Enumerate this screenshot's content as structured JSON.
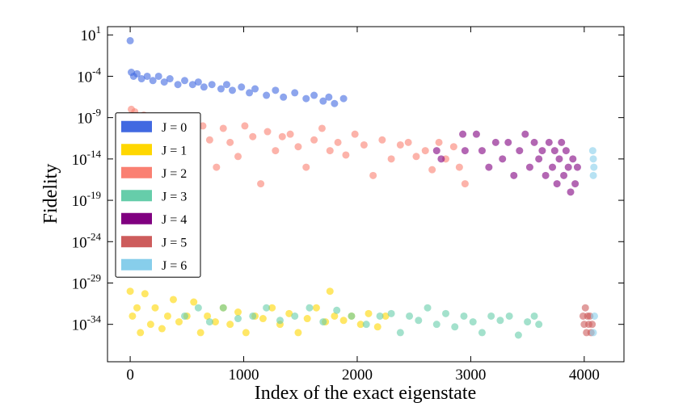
{
  "chart_data": {
    "type": "scatter",
    "xlabel": "Index of the exact eigenstate",
    "ylabel": "Fidelity",
    "xlim": [
      -200,
      4350
    ],
    "ylim": [
      3e-39,
      100.0
    ],
    "yscale": "log",
    "xticks": [
      0,
      1000,
      2000,
      3000,
      4000
    ],
    "yticks": [
      {
        "value": 10.0,
        "label": "10^1"
      },
      {
        "value": 0.0001,
        "label": "10^-4"
      },
      {
        "value": 1e-09,
        "label": "10^-9"
      },
      {
        "value": 1e-14,
        "label": "10^-14"
      },
      {
        "value": 1e-19,
        "label": "10^-19"
      },
      {
        "value": 1e-24,
        "label": "10^-24"
      },
      {
        "value": 1e-29,
        "label": "10^-29"
      },
      {
        "value": 1e-34,
        "label": "10^-34"
      }
    ],
    "legend": "center left",
    "series": [
      {
        "name": "J = 0",
        "color": "#4169e1",
        "x": [
          0,
          10,
          30,
          60,
          100,
          150,
          200,
          250,
          300,
          350,
          420,
          480,
          550,
          600,
          650,
          720,
          800,
          850,
          900,
          980,
          1050,
          1100,
          1200,
          1280,
          1350,
          1450,
          1550,
          1620,
          1700,
          1750,
          1800,
          1880
        ],
        "values": [
          2,
          0.0003,
          0.0001,
          0.0002,
          5e-05,
          0.0001,
          3e-05,
          0.0001,
          2e-05,
          5e-05,
          1e-05,
          3e-05,
          1e-05,
          2e-05,
          5e-06,
          1e-05,
          3e-06,
          1e-05,
          2e-06,
          5e-06,
          1e-06,
          3e-06,
          5e-07,
          2e-06,
          3e-07,
          1e-06,
          2e-07,
          5e-07,
          1e-07,
          3e-07,
          5e-08,
          2e-07
        ]
      },
      {
        "name": "J = 1",
        "color": "#ffd700",
        "x": [
          0,
          20,
          60,
          90,
          130,
          180,
          220,
          280,
          330,
          380,
          430,
          500,
          560,
          620,
          680,
          750,
          820,
          880,
          950,
          1020,
          1100,
          1170,
          1250,
          1320,
          1400,
          1480,
          1560,
          1640,
          1720,
          1760,
          1800,
          1880,
          1950,
          2030,
          2100,
          2180,
          2250
        ],
        "values": [
          1e-30,
          1e-33,
          1e-32,
          1e-35,
          5e-31,
          1e-34,
          1e-32,
          3e-35,
          1e-33,
          1e-31,
          2e-34,
          1e-33,
          5e-32,
          1e-35,
          1e-33,
          2e-34,
          1e-32,
          1e-34,
          3e-33,
          1e-35,
          1e-33,
          5e-34,
          1e-32,
          1e-34,
          2e-33,
          1e-35,
          5e-34,
          1e-32,
          2e-34,
          1e-30,
          1e-33,
          3e-34,
          1e-33,
          1e-34,
          2e-33,
          5e-35,
          1e-33
        ]
      },
      {
        "name": "J = 2",
        "color": "#fa8072",
        "x": [
          10,
          40,
          80,
          120,
          170,
          220,
          260,
          310,
          360,
          420,
          470,
          520,
          580,
          640,
          700,
          760,
          820,
          880,
          950,
          1010,
          1080,
          1150,
          1210,
          1280,
          1340,
          1410,
          1480,
          1550,
          1620,
          1690,
          1760,
          1830,
          1900,
          1980,
          2060,
          2140,
          2220,
          2300,
          2380,
          2450,
          2520,
          2600,
          2660,
          2720,
          2780,
          2850,
          2900,
          2950
        ],
        "values": [
          1e-08,
          5e-09,
          1e-11,
          2e-09,
          1e-10,
          3e-12,
          1e-09,
          1e-11,
          5e-15,
          2e-10,
          1e-12,
          5e-11,
          1e-13,
          1e-10,
          2e-12,
          1e-15,
          5e-11,
          1e-12,
          2e-14,
          1e-10,
          5e-12,
          1e-17,
          2e-11,
          1e-13,
          5e-12,
          1e-11,
          3e-13,
          1e-15,
          2e-12,
          5e-11,
          1e-13,
          1e-12,
          3e-14,
          1e-11,
          5e-13,
          1e-16,
          2e-12,
          1e-14,
          5e-13,
          1e-12,
          2e-14,
          1e-13,
          5e-16,
          1e-12,
          1e-14,
          3e-13,
          1e-15,
          1e-17
        ]
      },
      {
        "name": "J = 3",
        "color": "#66cdaa",
        "x": [
          480,
          600,
          700,
          820,
          950,
          1080,
          1200,
          1320,
          1450,
          1580,
          1700,
          1820,
          1950,
          2080,
          2200,
          2300,
          2380,
          2460,
          2540,
          2620,
          2700,
          2780,
          2860,
          2940,
          3020,
          3100,
          3180,
          3260,
          3340,
          3420,
          3500,
          3560,
          3600
        ],
        "values": [
          1e-33,
          1e-32,
          2e-34,
          1e-32,
          5e-34,
          1e-33,
          1e-32,
          3e-34,
          1e-33,
          1e-32,
          2e-34,
          5e-33,
          1e-33,
          1e-34,
          1e-33,
          2e-33,
          1e-35,
          1e-33,
          3e-34,
          1e-32,
          1e-34,
          2e-33,
          5e-35,
          1e-33,
          2e-34,
          1e-35,
          1e-33,
          3e-34,
          1e-33,
          5e-36,
          2e-34,
          1e-33,
          1e-34
        ]
      },
      {
        "name": "J = 4",
        "color": "#800080",
        "x": [
          2700,
          2740,
          2930,
          2950,
          3050,
          3100,
          3160,
          3220,
          3280,
          3330,
          3380,
          3430,
          3480,
          3520,
          3560,
          3600,
          3630,
          3660,
          3690,
          3720,
          3740,
          3760,
          3780,
          3800,
          3820,
          3840,
          3860,
          3880,
          3900,
          3920,
          3940
        ],
        "values": [
          1e-13,
          1e-14,
          1e-11,
          1e-13,
          1e-11,
          1e-13,
          1e-15,
          1e-12,
          1e-14,
          1e-12,
          1e-16,
          1e-13,
          1e-11,
          1e-15,
          1e-12,
          1e-14,
          1e-13,
          1e-16,
          1e-12,
          1e-15,
          1e-13,
          1e-17,
          1e-14,
          1e-12,
          1e-16,
          1e-13,
          1e-15,
          1e-18,
          1e-14,
          1e-17,
          1e-15
        ]
      },
      {
        "name": "J = 5",
        "color": "#cd5c5c",
        "x": [
          3990,
          4000,
          4010,
          4020,
          4030,
          4040,
          4050,
          4060,
          4070
        ],
        "values": [
          1e-33,
          1e-34,
          1e-32,
          1e-35,
          1e-33,
          1e-34,
          1e-33,
          1e-35,
          1e-34
        ]
      },
      {
        "name": "J = 6",
        "color": "#87ceeb",
        "x": [
          4075,
          4080,
          4085,
          4080,
          4090,
          4080
        ],
        "values": [
          1e-13,
          1e-14,
          1e-15,
          1e-16,
          1e-33,
          1e-35
        ]
      }
    ]
  }
}
